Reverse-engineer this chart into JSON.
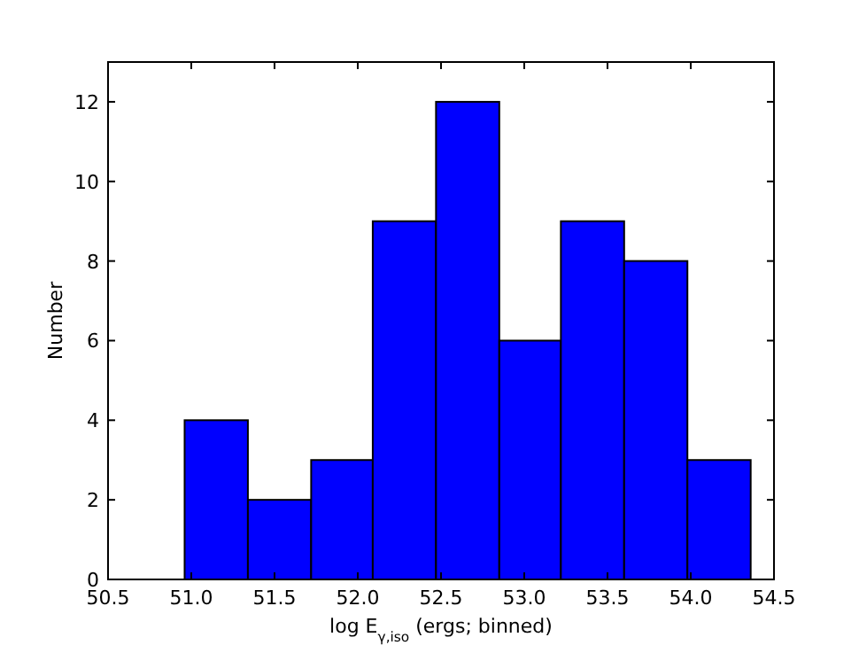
{
  "chart_data": {
    "type": "histogram",
    "xlabel": "log E$_{γ,iso}$ (ergs; binned)",
    "ylabel": "Number",
    "bins": [
      50.96,
      51.34,
      51.72,
      52.09,
      52.47,
      52.85,
      53.22,
      53.6,
      53.98,
      54.36
    ],
    "values": [
      4,
      2,
      3,
      9,
      12,
      6,
      9,
      8,
      3
    ],
    "color": "#0000ff",
    "xlim": [
      50.5,
      54.5
    ],
    "xticks": [
      {
        "value": 50.5,
        "label": "50.5"
      },
      {
        "value": 51,
        "label": "51.0"
      },
      {
        "value": 51.5,
        "label": "51.5"
      },
      {
        "value": 52,
        "label": "52.0"
      },
      {
        "value": 52.5,
        "label": "52.5"
      },
      {
        "value": 53,
        "label": "53.0"
      },
      {
        "value": 53.5,
        "label": "53.5"
      },
      {
        "value": 54,
        "label": "54.0"
      },
      {
        "value": 54.5,
        "label": "54.5"
      }
    ],
    "ylim": [
      0,
      13
    ],
    "yticks": [
      0,
      2,
      4,
      6,
      8,
      10,
      12
    ]
  }
}
